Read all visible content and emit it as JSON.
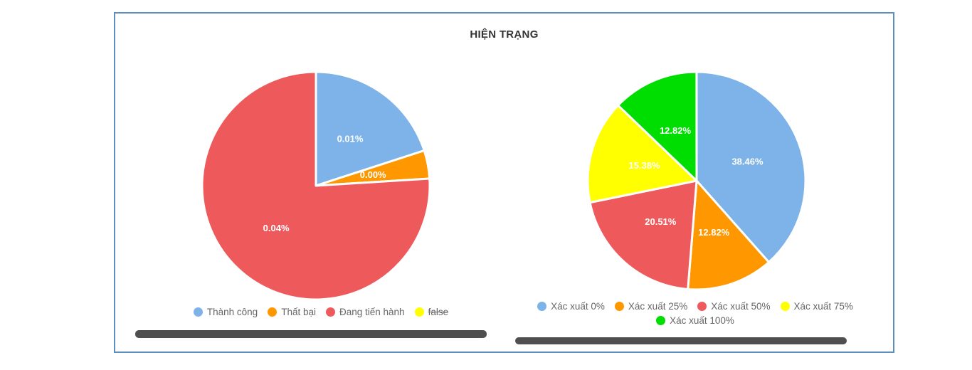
{
  "panel": {
    "title": "HIỆN TRẠNG",
    "border_color": "#5C8FBF",
    "background": "#FFFFFF",
    "scrollbar_color": "#4F4F4F",
    "title_color": "#333333",
    "legend_text_color": "#666666"
  },
  "chart_data": [
    {
      "type": "pie",
      "title": "HIỆN TRẠNG",
      "legend_position": "bottom",
      "slices": [
        {
          "label": "Thành công",
          "data_label": "0.01%",
          "display_percent": 20.0,
          "color": "#7DB3E8"
        },
        {
          "label": "Thất bại",
          "data_label": "0.00%",
          "display_percent": 4.0,
          "color": "#FF9800"
        },
        {
          "label": "Đang tiến hành",
          "data_label": "0.04%",
          "display_percent": 76.0,
          "color": "#EE5A5C"
        }
      ],
      "legend": [
        {
          "label": "Thành công",
          "color": "#7DB3E8",
          "hidden": false
        },
        {
          "label": "Thất bại",
          "color": "#FF9800",
          "hidden": false
        },
        {
          "label": "Đang tiến hành",
          "color": "#EE5A5C",
          "hidden": false
        },
        {
          "label": "false",
          "color": "#FFFF00",
          "hidden": true
        }
      ]
    },
    {
      "type": "pie",
      "title": "HIỆN TRẠNG",
      "legend_position": "bottom",
      "slices": [
        {
          "label": "Xác xuất 0%",
          "data_label": "38.46%",
          "display_percent": 38.46,
          "color": "#7DB3E8"
        },
        {
          "label": "Xác xuất 25%",
          "data_label": "12.82%",
          "display_percent": 12.82,
          "color": "#FF9800"
        },
        {
          "label": "Xác xuất 50%",
          "data_label": "20.51%",
          "display_percent": 20.51,
          "color": "#EE5A5C"
        },
        {
          "label": "Xác xuất 75%",
          "data_label": "15.38%",
          "display_percent": 15.38,
          "color": "#FFFF00"
        },
        {
          "label": "Xác xuất 100%",
          "data_label": "12.82%",
          "display_percent": 12.82,
          "color": "#00DD00"
        }
      ],
      "legend": [
        {
          "label": "Xác xuất 0%",
          "color": "#7DB3E8",
          "hidden": false
        },
        {
          "label": "Xác xuất 25%",
          "color": "#FF9800",
          "hidden": false
        },
        {
          "label": "Xác xuất 50%",
          "color": "#EE5A5C",
          "hidden": false
        },
        {
          "label": "Xác xuất 75%",
          "color": "#FFFF00",
          "hidden": false
        },
        {
          "label": "Xác xuất 100%",
          "color": "#00DD00",
          "hidden": false
        }
      ]
    }
  ]
}
